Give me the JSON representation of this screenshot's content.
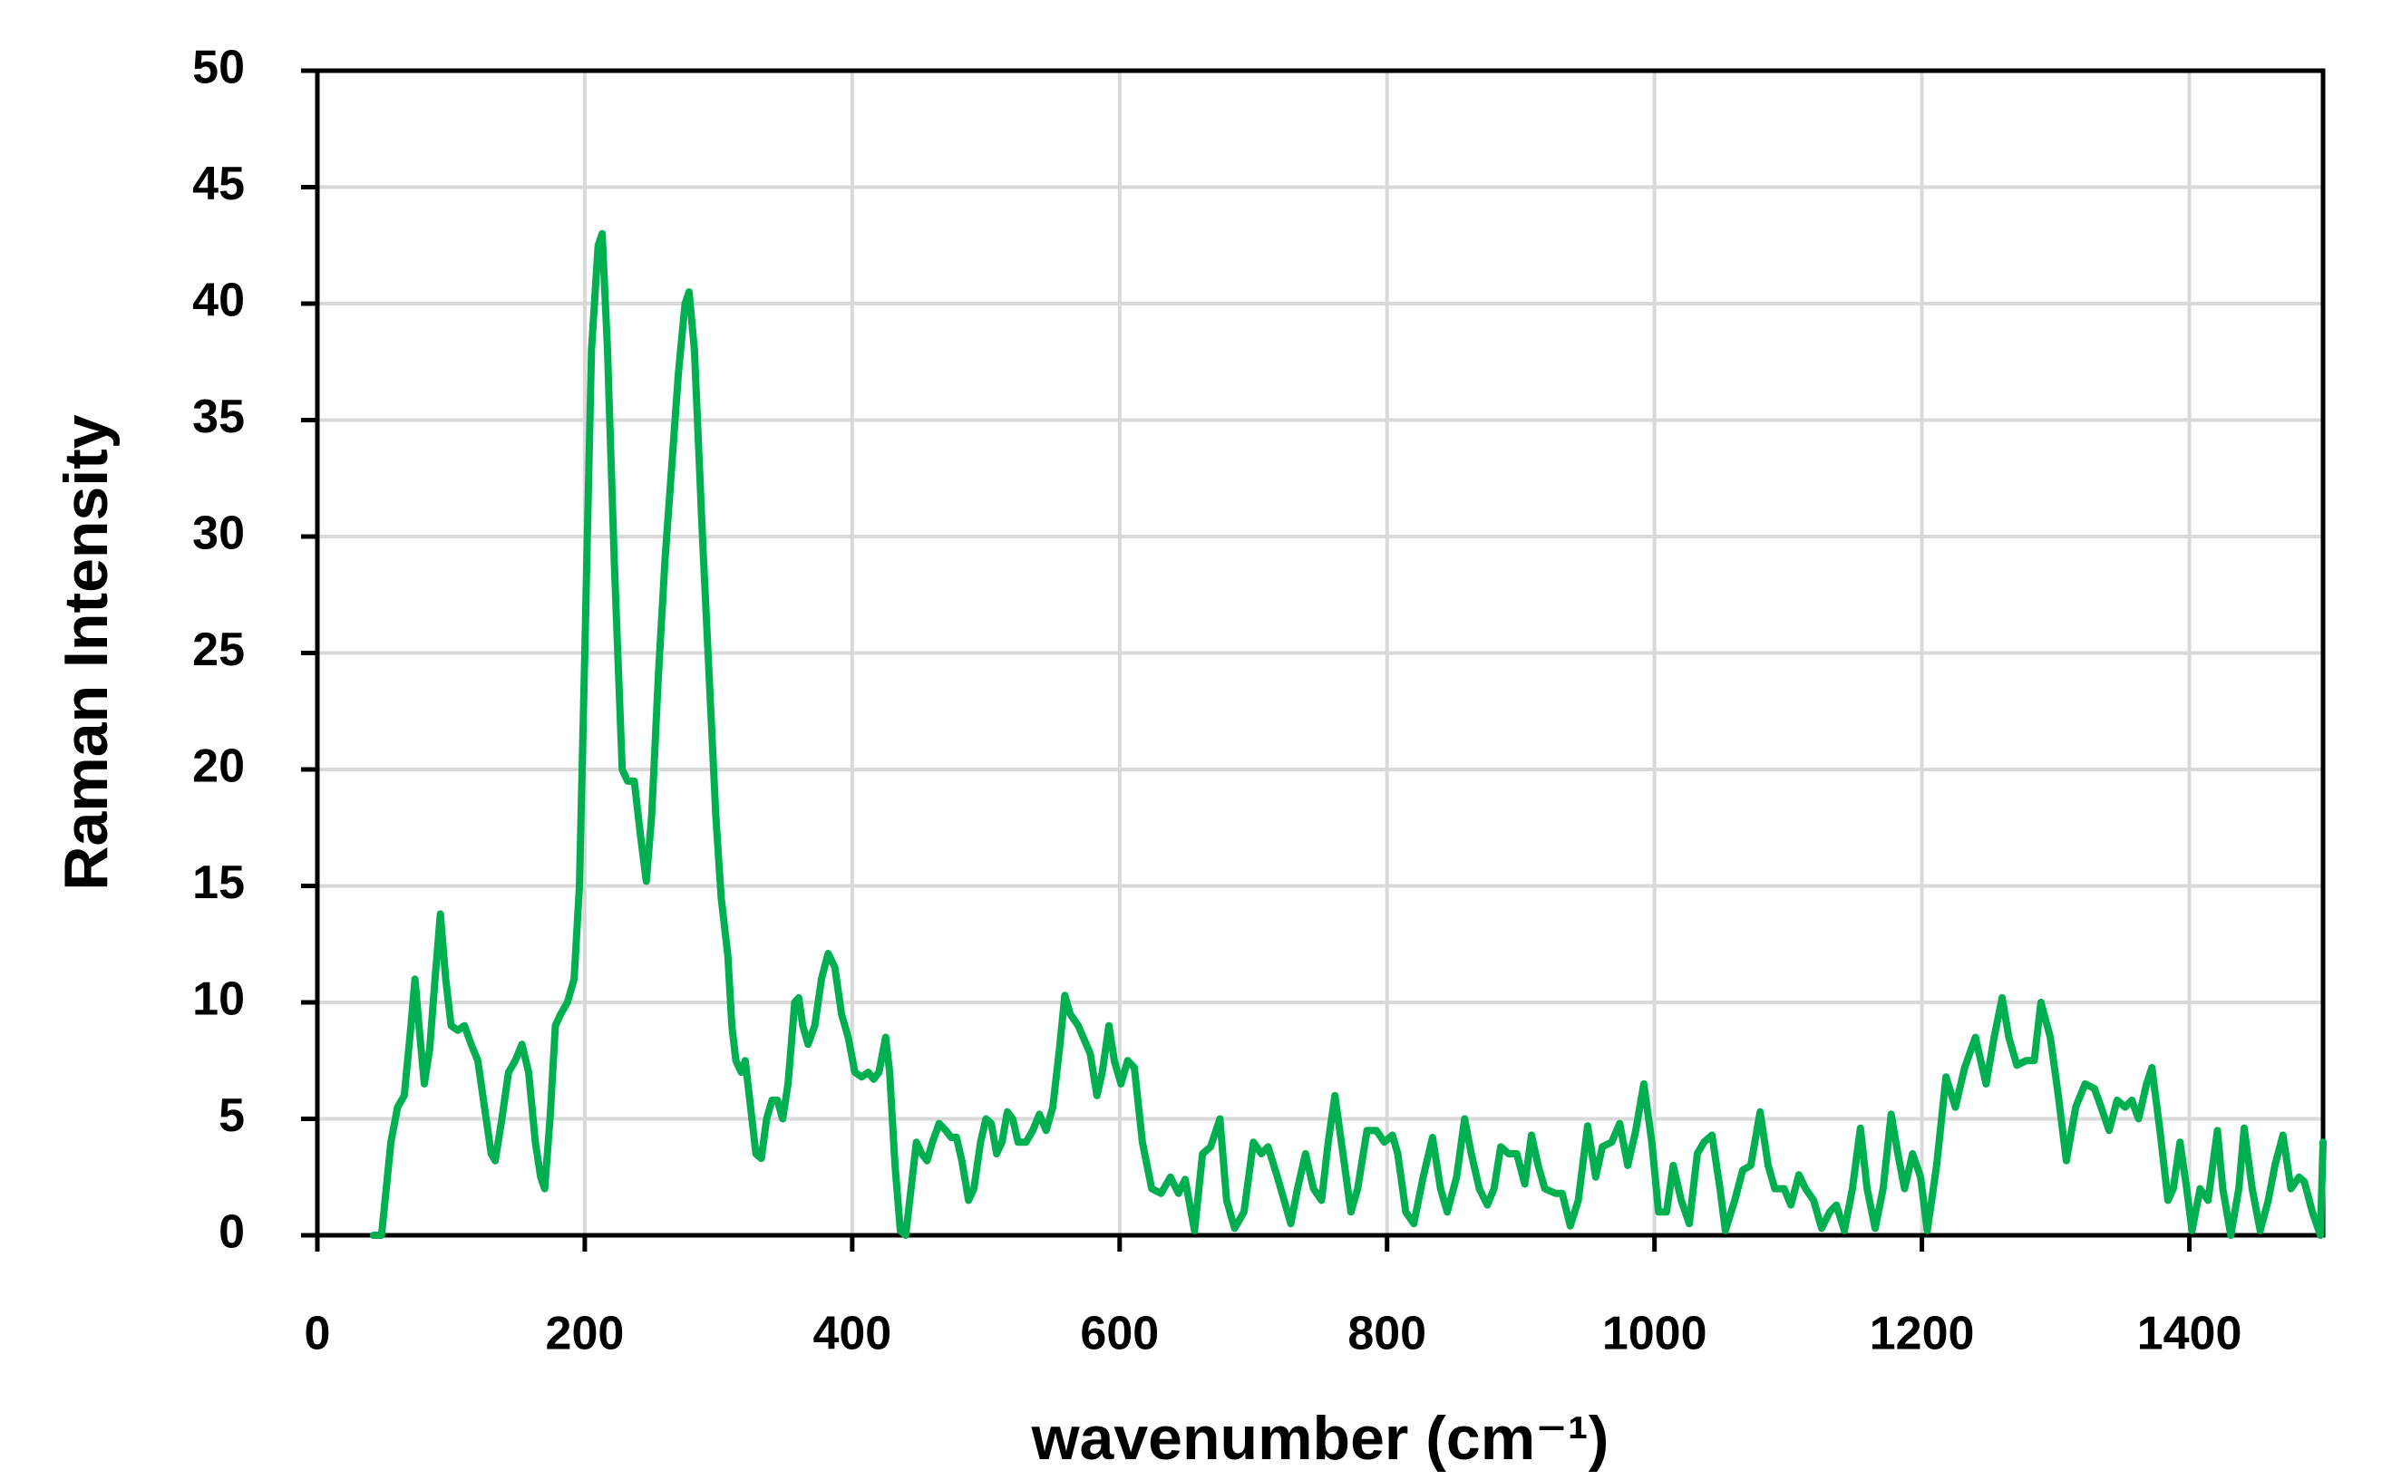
{
  "chart_data": {
    "type": "line",
    "xlabel": "wavenumber (cm⁻¹)",
    "ylabel": "Raman Intensity",
    "color": "#00b050",
    "grid": true,
    "xlim": [
      0,
      1500
    ],
    "xticks": [
      0,
      200,
      400,
      600,
      800,
      1000,
      1200,
      1400
    ],
    "ylim": [
      0,
      50
    ],
    "yticks": [
      0,
      5,
      10,
      15,
      20,
      25,
      30,
      35,
      40,
      45,
      50
    ],
    "x": [
      42,
      48,
      55,
      60,
      65,
      70,
      73,
      76,
      80,
      84,
      88,
      92,
      96,
      100,
      105,
      110,
      115,
      120,
      125,
      130,
      133,
      138,
      143,
      148,
      153,
      158,
      163,
      167,
      170,
      174,
      178,
      182,
      187,
      192,
      196,
      200,
      205,
      210,
      213,
      217,
      222,
      228,
      232,
      237,
      242,
      246,
      250,
      255,
      260,
      265,
      270,
      275,
      278,
      282,
      288,
      293,
      298,
      302,
      307,
      310,
      313,
      317,
      320,
      323,
      328,
      332,
      336,
      340,
      344,
      348,
      352,
      357,
      360,
      363,
      367,
      372,
      377,
      382,
      387,
      392,
      397,
      402,
      407,
      412,
      416,
      420,
      425,
      428,
      432,
      436,
      440,
      444,
      448,
      452,
      456,
      460,
      465,
      470,
      474,
      478,
      482,
      487,
      491,
      496,
      500,
      504,
      508,
      512,
      516,
      520,
      524,
      530,
      535,
      540,
      545,
      550,
      555,
      559,
      563,
      569,
      578,
      583,
      587,
      592,
      596,
      601,
      606,
      611,
      617,
      624,
      631,
      638,
      644,
      649,
      656,
      662,
      668,
      675,
      680,
      686,
      693,
      700,
      706,
      711,
      718,
      723,
      728,
      733,
      739,
      745,
      751,
      756,
      761,
      767,
      773,
      778,
      785,
      792,
      798,
      804,
      808,
      814,
      820,
      827,
      834,
      840,
      845,
      852,
      858,
      863,
      869,
      875,
      880,
      885,
      891,
      897,
      903,
      908,
      913,
      918,
      926,
      931,
      937,
      943,
      950,
      956,
      961,
      968,
      974,
      980,
      986,
      992,
      998,
      1003,
      1009,
      1014,
      1020,
      1026,
      1032,
      1037,
      1043,
      1049,
      1053,
      1060,
      1066,
      1072,
      1079,
      1085,
      1090,
      1097,
      1102,
      1108,
      1113,
      1119,
      1125,
      1131,
      1136,
      1142,
      1148,
      1154,
      1159,
      1165,
      1171,
      1177,
      1182,
      1187,
      1193,
      1199,
      1204,
      1211,
      1218,
      1225,
      1232,
      1240,
      1248,
      1254,
      1260,
      1265,
      1271,
      1278,
      1284,
      1289,
      1296,
      1302,
      1308,
      1315,
      1322,
      1329,
      1334,
      1340,
      1346,
      1352,
      1357,
      1362,
      1368,
      1372,
      1378,
      1384,
      1388,
      1393,
      1398,
      1402,
      1408,
      1414,
      1421,
      1425,
      1431,
      1437,
      1441,
      1447,
      1453,
      1459,
      1464,
      1470,
      1476,
      1482,
      1486,
      1492,
      1498,
      1500
    ],
    "values": [
      0,
      0,
      4,
      5.5,
      6,
      9,
      11,
      9,
      6.5,
      8,
      11,
      13.8,
      11,
      9,
      8.8,
      9,
      8.2,
      7.5,
      5.5,
      3.5,
      3.2,
      5,
      7,
      7.5,
      8.2,
      7,
      4,
      2.5,
      2,
      5,
      9,
      9.5,
      10,
      11,
      15,
      25,
      38,
      42.5,
      43,
      38,
      29,
      20,
      19.5,
      19.5,
      17,
      15.2,
      18,
      24,
      29,
      33,
      37,
      40,
      40.5,
      38,
      30,
      24,
      18,
      14.5,
      12,
      9,
      7.5,
      7,
      7.5,
      6,
      3.5,
      3.3,
      5,
      5.8,
      5.8,
      5,
      6.5,
      10,
      10.2,
      9,
      8.2,
      9,
      11,
      12.1,
      11.5,
      9.5,
      8.5,
      7,
      6.8,
      7,
      6.7,
      7,
      8.5,
      7,
      3,
      0.2,
      0,
      2,
      4,
      3.5,
      3.2,
      4,
      4.8,
      4.5,
      4.2,
      4.2,
      3.2,
      1.5,
      2,
      4,
      5,
      4.8,
      3.5,
      4,
      5.3,
      5,
      4,
      4,
      4.5,
      5.2,
      4.5,
      5.5,
      8,
      10.3,
      9.5,
      9,
      7.8,
      6,
      7,
      9,
      7.5,
      6.5,
      7.5,
      7.2,
      4,
      2,
      1.8,
      2.5,
      1.8,
      2.4,
      0.2,
      3.5,
      3.8,
      5,
      1.5,
      0.3,
      1,
      4,
      3.5,
      3.8,
      2.5,
      1.5,
      0.5,
      2,
      3.5,
      2,
      1.5,
      4,
      6,
      3.5,
      1,
      2,
      4.5,
      4.5,
      4,
      4.3,
      3.5,
      1,
      0.5,
      2.5,
      4.2,
      2,
      1,
      2.5,
      5,
      3.5,
      2,
      1.3,
      2,
      3.8,
      3.5,
      3.5,
      2.2,
      4.3,
      3,
      2,
      1.8,
      1.8,
      0.4,
      1.5,
      4.7,
      2.5,
      3.8,
      4,
      4.8,
      3,
      4.5,
      6.5,
      4,
      1,
      1,
      3,
      1.5,
      0.5,
      3.5,
      4,
      4.3,
      2,
      0.2,
      1.5,
      2.8,
      3,
      5.3,
      3,
      2,
      2,
      1.3,
      2.6,
      2,
      1.5,
      0.3,
      1,
      1.3,
      0.2,
      2,
      4.6,
      2,
      0.3,
      2,
      5.2,
      3.5,
      2,
      3.5,
      2.5,
      0.2,
      3,
      6.8,
      5.5,
      7.2,
      8.5,
      6.5,
      8.5,
      10.2,
      8.5,
      7.3,
      7.5,
      7.5,
      10,
      8.5,
      6,
      3.2,
      5.5,
      6.5,
      6.3,
      5.5,
      4.5,
      5.8,
      5.5,
      5.8,
      5,
      6.5,
      7.2,
      4.5,
      1.5,
      2,
      4,
      2,
      0.2,
      2,
      1.5,
      4.5,
      2,
      0,
      2,
      4.6,
      2,
      0.2,
      1.5,
      3,
      4.3,
      2,
      2.5,
      2.3,
      1,
      0,
      4
    ]
  }
}
